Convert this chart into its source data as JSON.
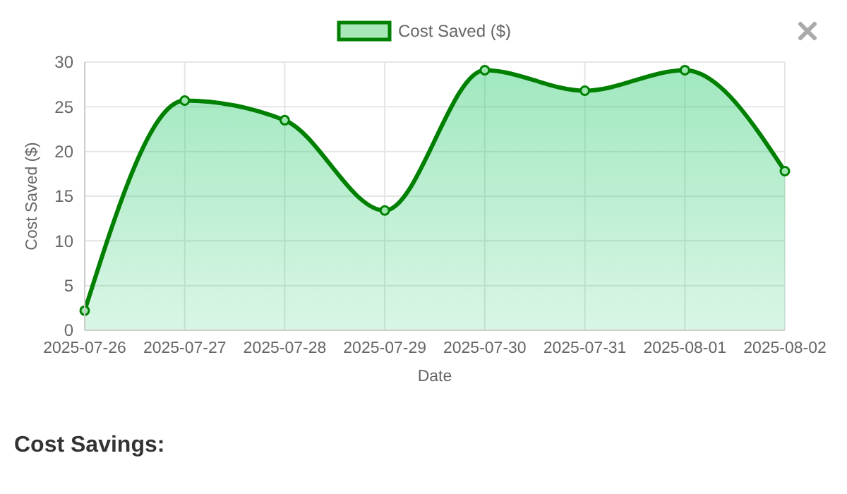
{
  "chart_data": {
    "type": "area",
    "xlabel": "Date",
    "ylabel": "Cost Saved ($)",
    "categories": [
      "2025-07-26",
      "2025-07-27",
      "2025-07-28",
      "2025-07-29",
      "2025-07-30",
      "2025-07-31",
      "2025-08-01",
      "2025-08-02"
    ],
    "series": [
      {
        "name": "Cost Saved ($)",
        "color": "#008000",
        "values": [
          2.2,
          25.7,
          23.5,
          13.4,
          29.1,
          26.8,
          29.1,
          17.8
        ]
      }
    ],
    "ylim": [
      0,
      30
    ],
    "yticks": [
      0,
      5,
      10,
      15,
      20,
      25,
      30
    ],
    "grid": true,
    "legend": "top",
    "marker": "circle",
    "line_style": "solid",
    "annotations": [
      "Cost Savings:"
    ]
  }
}
